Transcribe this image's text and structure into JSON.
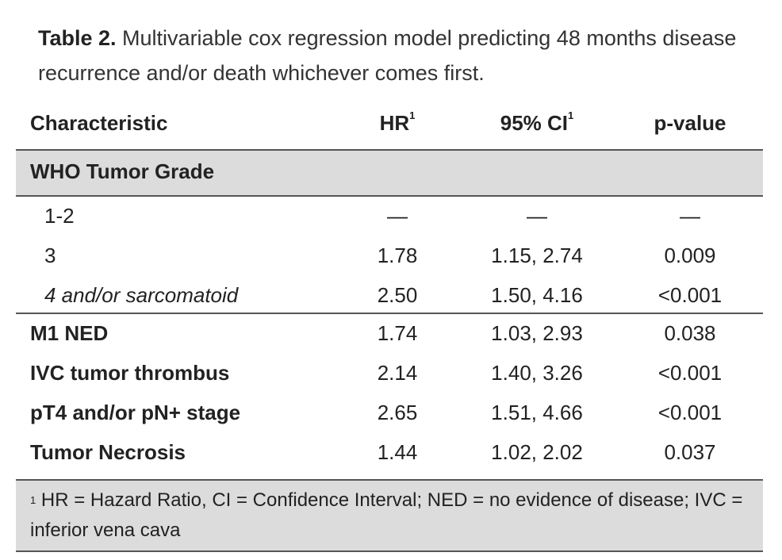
{
  "caption": {
    "label": "Table 2.",
    "text": " Multivariable cox regression model predicting 48 months disease recurrence and/or death whichever comes first."
  },
  "header": {
    "characteristic": "Characteristic",
    "hr": "HR",
    "ci": "95% CI",
    "pvalue": "p-value",
    "footnote_mark": "1"
  },
  "group": {
    "label": "WHO Tumor Grade"
  },
  "sub_rows": [
    {
      "name": "1-2",
      "hr": "—",
      "ci": "—",
      "p": "—"
    },
    {
      "name": "3",
      "hr": "1.78",
      "ci": "1.15, 2.74",
      "p": "0.009"
    },
    {
      "name": "4 and/or sarcomatoid",
      "hr": "2.50",
      "ci": "1.50, 4.16",
      "p": "<0.001"
    }
  ],
  "main_rows": [
    {
      "name": "M1 NED",
      "hr": "1.74",
      "ci": "1.03, 2.93",
      "p": "0.038"
    },
    {
      "name": "IVC tumor thrombus",
      "hr": "2.14",
      "ci": "1.40, 3.26",
      "p": "<0.001"
    },
    {
      "name": "pT4 and/or pN+ stage",
      "hr": "2.65",
      "ci": "1.51, 4.66",
      "p": "<0.001"
    },
    {
      "name": "Tumor Necrosis",
      "hr": "1.44",
      "ci": "1.02, 2.02",
      "p": "0.037"
    }
  ],
  "footnote": {
    "mark": "1",
    "text": " HR = Hazard Ratio, CI = Confidence Interval; NED = no evidence of disease; IVC = inferior vena cava"
  }
}
